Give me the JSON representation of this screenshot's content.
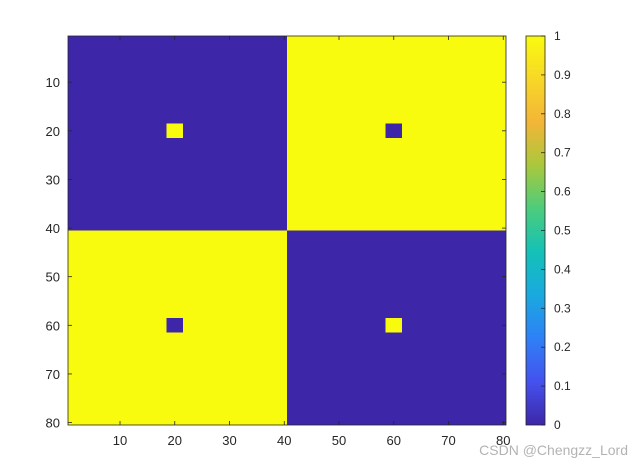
{
  "chart_data": {
    "type": "heatmap",
    "title": "",
    "xlabel": "",
    "ylabel": "",
    "x_range": [
      0.5,
      80.5
    ],
    "y_range": [
      0.5,
      80.5
    ],
    "y_reversed": true,
    "x_ticks": [
      10,
      20,
      30,
      40,
      50,
      60,
      70,
      80
    ],
    "y_ticks": [
      10,
      20,
      30,
      40,
      50,
      60,
      70,
      80
    ],
    "grid": false,
    "regions": [
      {
        "name": "top-left",
        "x": [
          1,
          40
        ],
        "y": [
          1,
          40
        ],
        "value": 0
      },
      {
        "name": "top-right",
        "x": [
          41,
          80
        ],
        "y": [
          1,
          40
        ],
        "value": 1
      },
      {
        "name": "bottom-left",
        "x": [
          1,
          40
        ],
        "y": [
          41,
          80
        ],
        "value": 1
      },
      {
        "name": "bottom-right",
        "x": [
          41,
          80
        ],
        "y": [
          41,
          80
        ],
        "value": 0
      }
    ],
    "dots": [
      {
        "x": [
          19,
          21
        ],
        "y": [
          19,
          21
        ],
        "value": 1
      },
      {
        "x": [
          59,
          61
        ],
        "y": [
          19,
          21
        ],
        "value": 0
      },
      {
        "x": [
          19,
          21
        ],
        "y": [
          59,
          61
        ],
        "value": 0
      },
      {
        "x": [
          59,
          61
        ],
        "y": [
          59,
          61
        ],
        "value": 1
      }
    ],
    "colormap": "parula",
    "colormap_stops": [
      "#3e26a8",
      "#4452ee",
      "#2f80f7",
      "#1aa9df",
      "#14c1b7",
      "#4ccc7d",
      "#a9c83d",
      "#f3b538",
      "#f8d728",
      "#f9fb0e"
    ],
    "colorbar": {
      "range": [
        0,
        1
      ],
      "ticks": [
        0,
        0.1,
        0.2,
        0.3,
        0.4,
        0.5,
        0.6,
        0.7,
        0.8,
        0.9,
        1
      ],
      "tick_labels": [
        "0",
        "0.1",
        "0.2",
        "0.3",
        "0.4",
        "0.5",
        "0.6",
        "0.7",
        "0.8",
        "0.9",
        "1"
      ],
      "placement": "right"
    },
    "low_color": "#3e26a8",
    "high_color": "#f9fb0e"
  },
  "watermark": "CSDN @Chengzz_Lord"
}
